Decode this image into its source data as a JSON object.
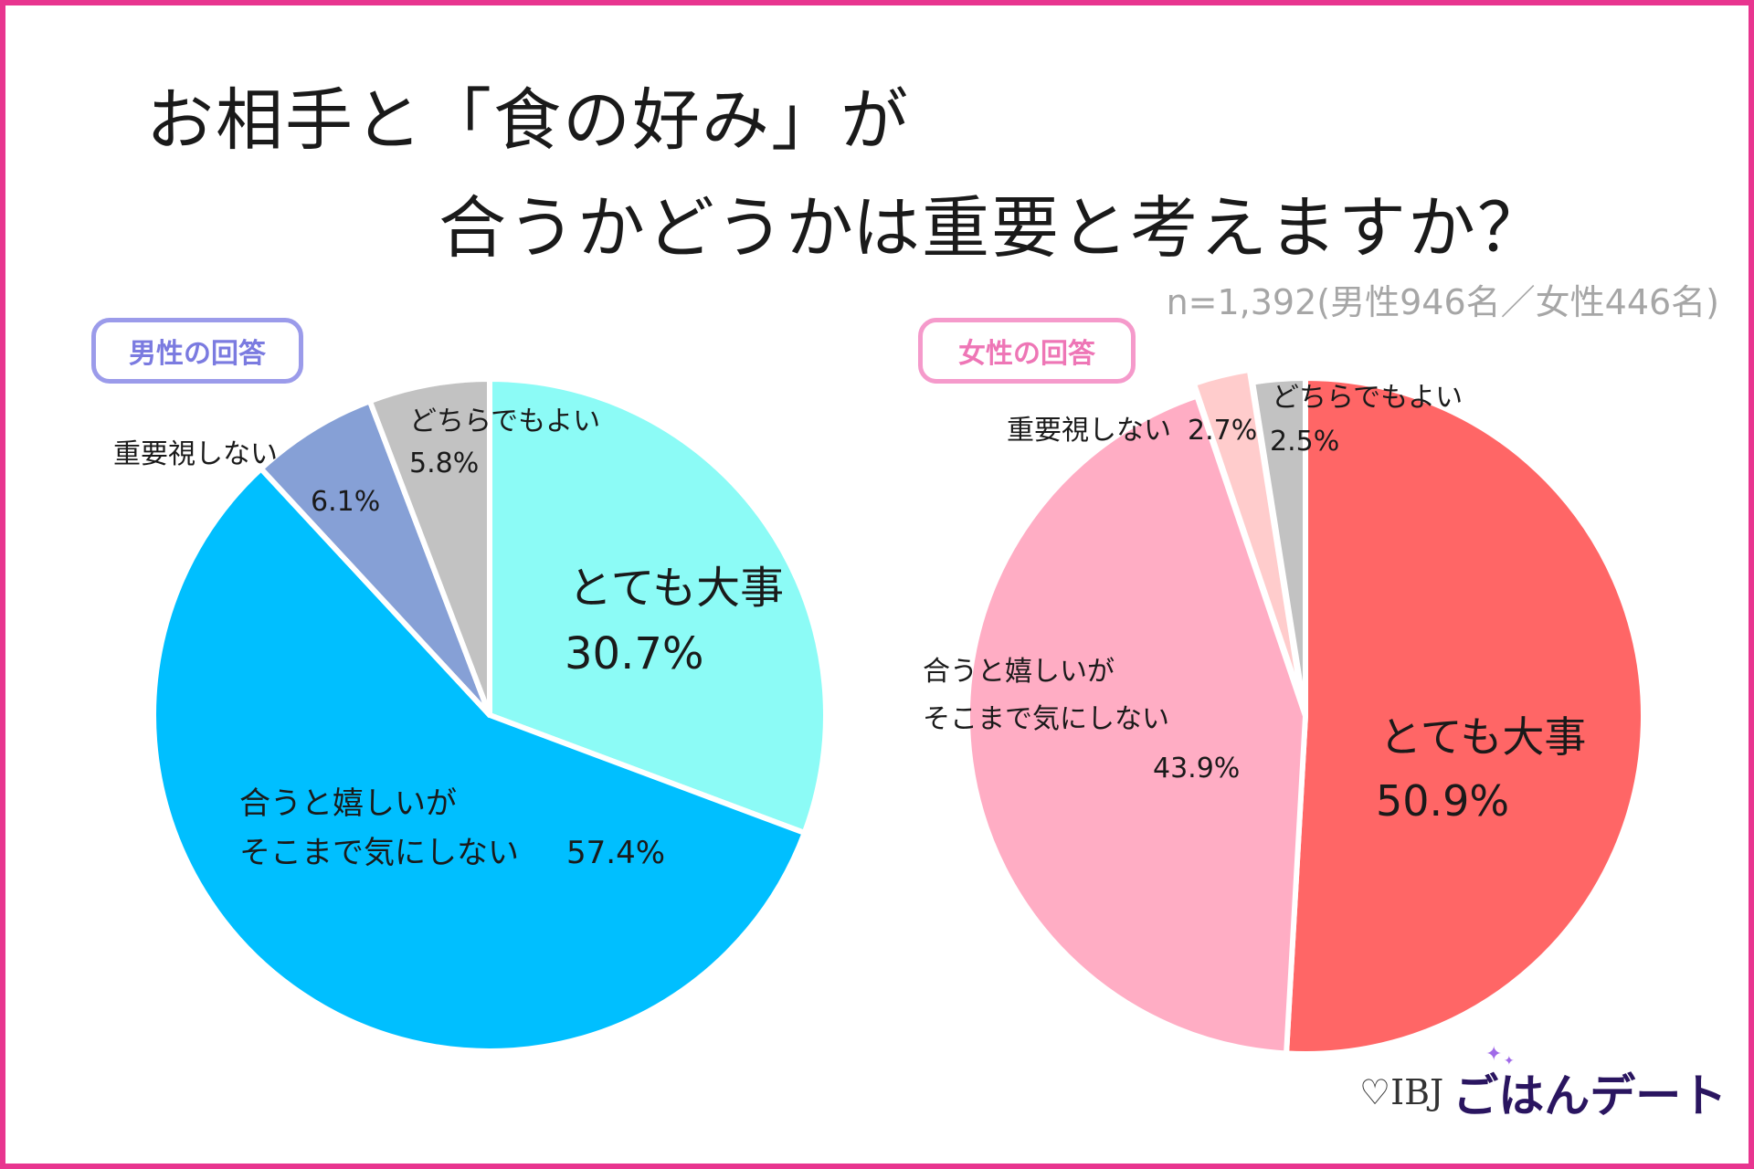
{
  "title_line1": "お相手と「食の好み」が",
  "title_line2": "合うかどうかは重要と考えますか？",
  "sample_note": "n=1,392(男性946名／女性446名)",
  "logo": {
    "prefix": "IBJ",
    "brand": "ごはんデート",
    "heart_icon": "heart-outline-icon",
    "sparkle_icon": "sparkle-icon"
  },
  "chart_data": [
    {
      "type": "pie",
      "label": "男性の回答",
      "badge_color": "#9b9bea",
      "slices": [
        {
          "name": "とても大事",
          "value": 30.7,
          "value_text": "30.7%",
          "color": "#8cfbf6"
        },
        {
          "name": "合うと嬉しいがそこまで気にしない",
          "value": 57.4,
          "value_text": "57.4%",
          "color": "#00bfff"
        },
        {
          "name": "重要視しない",
          "value": 6.1,
          "value_text": "6.1%",
          "color": "#86a0d6"
        },
        {
          "name": "どちらでもよい",
          "value": 5.8,
          "value_text": "5.8%",
          "color": "#c2c2c2"
        }
      ],
      "text": {
        "s1_name": "とても大事",
        "s2_line1": "合うと嬉しいが",
        "s2_line2": "そこまで気にしない",
        "s3_name": "重要視しない",
        "s4_name": "どちらでもよい"
      }
    },
    {
      "type": "pie",
      "label": "女性の回答",
      "badge_color": "#f59acb",
      "slices": [
        {
          "name": "とても大事",
          "value": 50.9,
          "value_text": "50.9%",
          "color": "#ff6666"
        },
        {
          "name": "合うと嬉しいがそこまで気にしない",
          "value": 43.9,
          "value_text": "43.9%",
          "color": "#ffadc4"
        },
        {
          "name": "重要視しない",
          "value": 2.7,
          "value_text": "2.7%",
          "color": "#ffcccc"
        },
        {
          "name": "どちらでもよい",
          "value": 2.5,
          "value_text": "2.5%",
          "color": "#c2c2c2"
        }
      ],
      "text": {
        "s1_name": "とても大事",
        "s2_line1": "合うと嬉しいが",
        "s2_line2": "そこまで気にしない",
        "s3_name": "重要視しない",
        "s4_name": "どちらでもよい"
      }
    }
  ]
}
